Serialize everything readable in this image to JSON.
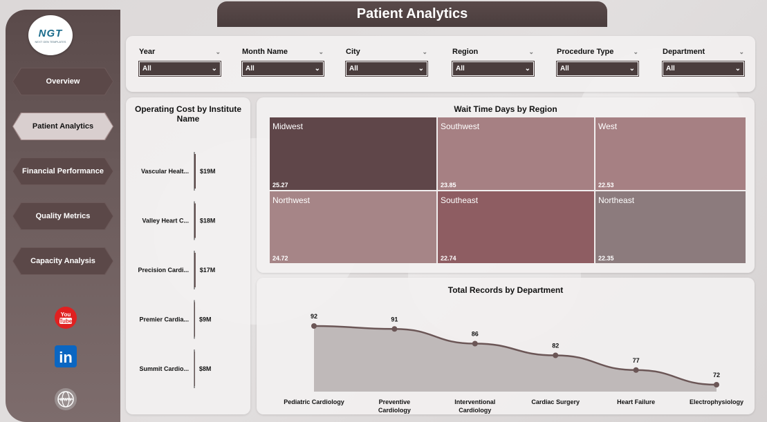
{
  "header": {
    "title": "Patient Analytics"
  },
  "logo": {
    "text": "NGT",
    "subtext": "NEXT GEN TEMPLATES"
  },
  "nav": [
    {
      "label": "Overview",
      "active": false
    },
    {
      "label": "Patient Analytics",
      "active": true
    },
    {
      "label": "Financial Performance",
      "active": false
    },
    {
      "label": "Quality Metrics",
      "active": false
    },
    {
      "label": "Capacity Analysis",
      "active": false
    }
  ],
  "social": {
    "youtube_label": "You Tube",
    "linkedin_label": "in"
  },
  "filters": [
    {
      "label": "Year",
      "value": "All"
    },
    {
      "label": "Month Name",
      "value": "All"
    },
    {
      "label": "City",
      "value": "All"
    },
    {
      "label": "Region",
      "value": "All"
    },
    {
      "label": "Procedure Type",
      "value": "All"
    },
    {
      "label": "Department",
      "value": "All"
    }
  ],
  "operating_cost": {
    "title": "Operating Cost by Institute Name",
    "chart_data": {
      "type": "bar",
      "categories": [
        "Vascular Healt...",
        "Valley Heart C...",
        "Precision Cardi...",
        "Premier Cardia...",
        "Summit Cardio..."
      ],
      "values": [
        19,
        18,
        17,
        9,
        8
      ],
      "data_labels": [
        "$19M",
        "$18M",
        "$17M",
        "$9M",
        "$8M"
      ]
    }
  },
  "wait_time": {
    "title": "Wait Time Days by Region",
    "chart_data": {
      "type": "heatmap",
      "categories": [
        "Midwest",
        "Southwest",
        "West",
        "Northwest",
        "Southeast",
        "Northeast"
      ],
      "values": [
        25.27,
        23.85,
        22.53,
        24.72,
        22.74,
        22.35
      ],
      "data_labels": [
        "25.27",
        "23.85",
        "22.53",
        "24.72",
        "22.74",
        "22.35"
      ],
      "colors": [
        "#5f4649",
        "#a68083",
        "#a68083",
        "#a68587",
        "#8e5d62",
        "#8c7b7d"
      ]
    }
  },
  "total_records": {
    "title": "Total Records by Department",
    "chart_data": {
      "type": "area",
      "categories": [
        "Pediatric Cardiology",
        "Preventive Cardiology",
        "Interventional Cardiology",
        "Cardiac Surgery",
        "Heart Failure",
        "Electrophysiology"
      ],
      "values": [
        92,
        91,
        86,
        82,
        77,
        72
      ],
      "data_labels": [
        "92",
        "91",
        "86",
        "82",
        "77",
        "72"
      ],
      "line_color": "#6b5656",
      "fill_color": "#b9b3b3"
    }
  }
}
